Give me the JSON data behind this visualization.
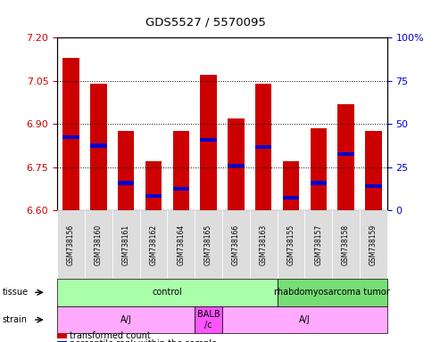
{
  "title": "GDS5527 / 5570095",
  "samples": [
    "GSM738156",
    "GSM738160",
    "GSM738161",
    "GSM738162",
    "GSM738164",
    "GSM738165",
    "GSM738166",
    "GSM738163",
    "GSM738155",
    "GSM738157",
    "GSM738158",
    "GSM738159"
  ],
  "bar_values": [
    7.13,
    7.04,
    6.875,
    6.77,
    6.875,
    7.07,
    6.92,
    7.04,
    6.77,
    6.885,
    6.97,
    6.875
  ],
  "blue_positions": [
    6.855,
    6.825,
    6.695,
    6.65,
    6.675,
    6.845,
    6.755,
    6.82,
    6.645,
    6.695,
    6.795,
    6.685
  ],
  "ymin": 6.6,
  "ymax": 7.2,
  "yticks": [
    6.6,
    6.75,
    6.9,
    7.05,
    7.2
  ],
  "right_yticks": [
    0,
    25,
    50,
    75,
    100
  ],
  "right_yticklabels": [
    "0",
    "25",
    "50",
    "75",
    "100%"
  ],
  "tissue_labels": [
    {
      "text": "control",
      "start": 0,
      "end": 8,
      "color": "#aaffaa"
    },
    {
      "text": "rhabdomyosarcoma tumor",
      "start": 8,
      "end": 12,
      "color": "#77dd77"
    }
  ],
  "strain_labels": [
    {
      "text": "A/J",
      "start": 0,
      "end": 5,
      "color": "#ffaaff"
    },
    {
      "text": "BALB\n/c",
      "start": 5,
      "end": 6,
      "color": "#ff55ff"
    },
    {
      "text": "A/J",
      "start": 6,
      "end": 12,
      "color": "#ffaaff"
    }
  ],
  "bar_color": "#cc0000",
  "blue_color": "#0000cc",
  "tick_color_left": "#cc0000",
  "tick_color_right": "#0000cc",
  "label_bg": "#dddddd"
}
